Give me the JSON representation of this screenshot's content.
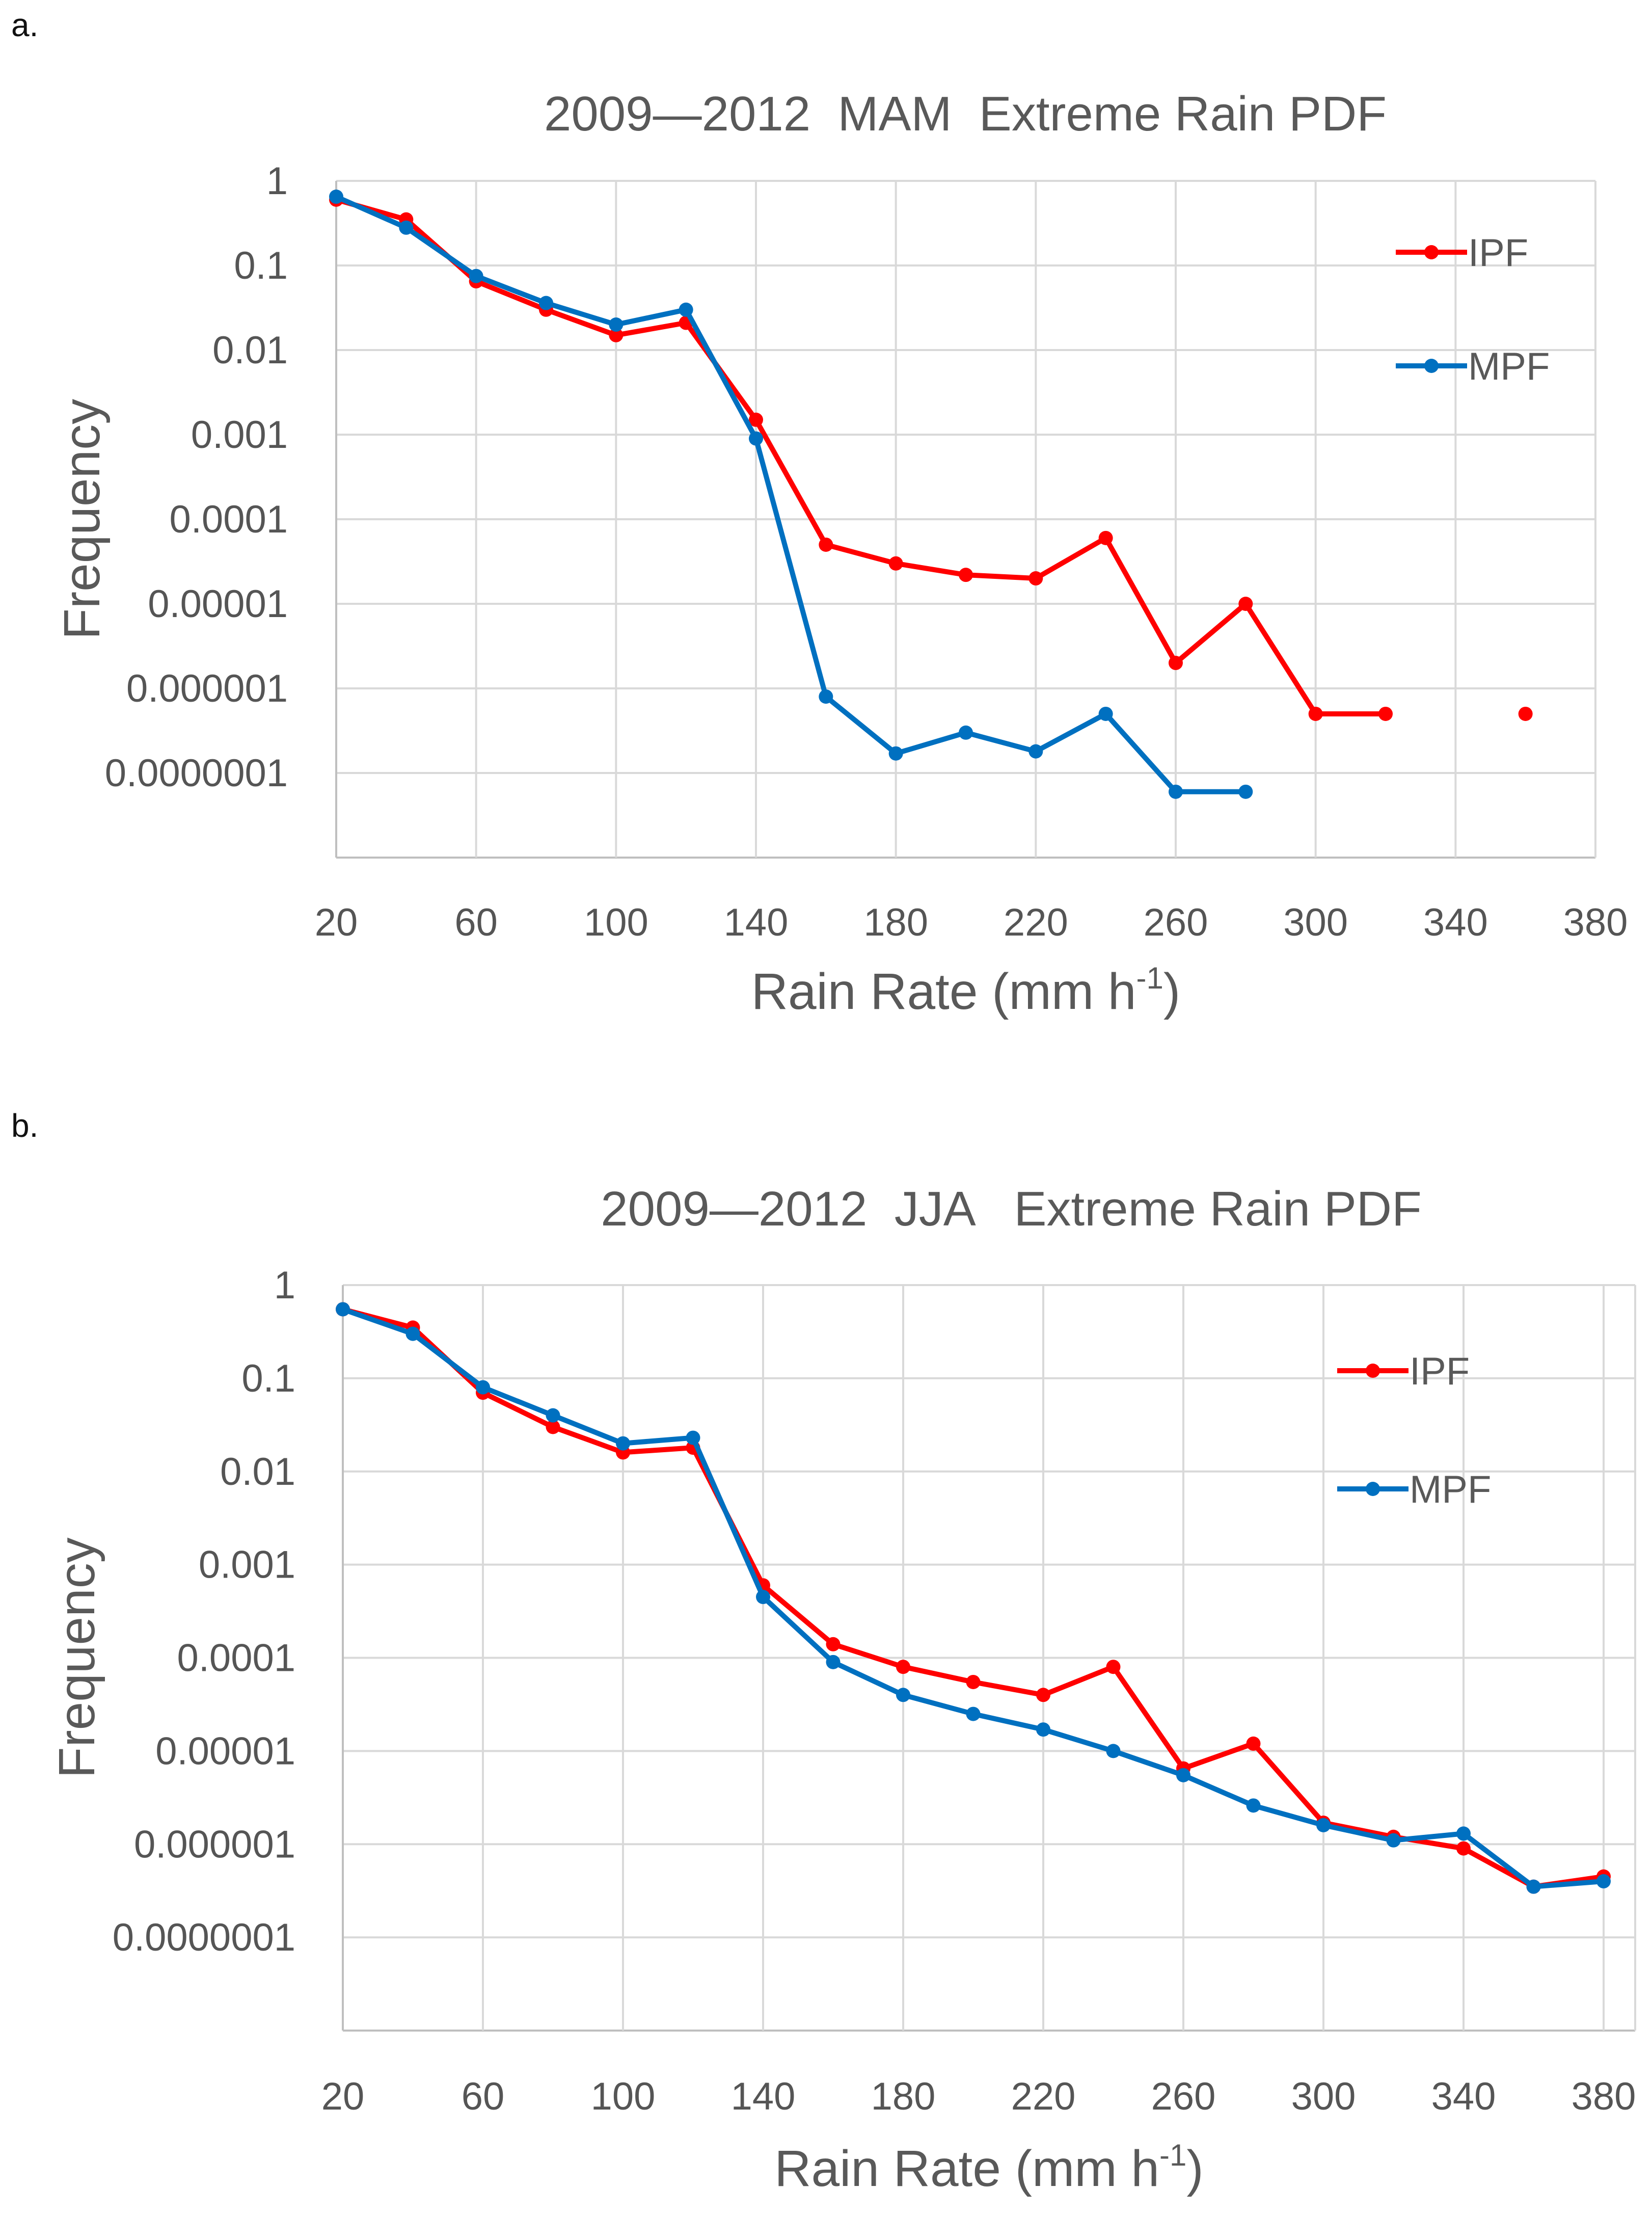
{
  "chart_data": [
    {
      "panel_label": "a.",
      "type": "line",
      "title": "2009—2012  MAM  Extreme Rain PDF",
      "xlabel": "Rain Rate (mm h",
      "xlabel_sup": "-1",
      "xlabel_close": ")",
      "ylabel": "Frequency",
      "xlim": [
        20,
        380
      ],
      "x_ticks": [
        "20",
        "60",
        "100",
        "140",
        "180",
        "220",
        "260",
        "300",
        "340",
        "380"
      ],
      "y_ticks": [
        "1",
        "0.1",
        "0.01",
        "0.001",
        "0.0001",
        "0.00001",
        "0.000001",
        "0.0000001"
      ],
      "ylim_log": [
        -8,
        0
      ],
      "legend_position": "top-right",
      "series": [
        {
          "name": "IPF",
          "color": "#ff0000",
          "x": [
            20,
            40,
            60,
            80,
            100,
            120,
            140,
            160,
            180,
            200,
            220,
            240,
            260,
            280,
            300,
            320,
            360
          ],
          "values": [
            0.6,
            0.35,
            0.065,
            0.03,
            0.015,
            0.021,
            0.0015,
            5e-05,
            3e-05,
            2.2e-05,
            2e-05,
            6e-05,
            2e-06,
            1e-05,
            5e-07,
            5e-07,
            5e-07
          ],
          "break_after_index": 15
        },
        {
          "name": "MPF",
          "color": "#0070c0",
          "x": [
            20,
            40,
            60,
            80,
            100,
            120,
            140,
            160,
            180,
            200,
            220,
            240,
            260,
            280
          ],
          "values": [
            0.65,
            0.28,
            0.075,
            0.036,
            0.02,
            0.03,
            0.0009,
            8e-07,
            1.7e-07,
            3e-07,
            1.8e-07,
            5e-07,
            6e-08,
            6e-08
          ]
        }
      ]
    },
    {
      "panel_label": "b.",
      "type": "line",
      "title": "2009—2012  JJA   Extreme Rain PDF",
      "xlabel": "Rain Rate (mm h",
      "xlabel_sup": "-1",
      "xlabel_close": ")",
      "ylabel": "Frequency",
      "xlim": [
        20,
        380
      ],
      "x_ticks": [
        "20",
        "60",
        "100",
        "140",
        "180",
        "220",
        "260",
        "300",
        "340",
        "380"
      ],
      "y_ticks": [
        "1",
        "0.1",
        "0.01",
        "0.001",
        "0.0001",
        "0.00001",
        "0.000001",
        "0.0000001"
      ],
      "ylim_log": [
        -8,
        0
      ],
      "legend_position": "top-right",
      "series": [
        {
          "name": "IPF",
          "color": "#ff0000",
          "x": [
            20,
            40,
            60,
            80,
            100,
            120,
            140,
            160,
            180,
            200,
            220,
            240,
            260,
            280,
            300,
            320,
            340,
            360,
            380
          ],
          "values": [
            0.55,
            0.35,
            0.07,
            0.03,
            0.016,
            0.018,
            0.0006,
            0.00014,
            8e-05,
            5.5e-05,
            4e-05,
            8e-05,
            6.5e-06,
            1.2e-05,
            1.7e-06,
            1.2e-06,
            9e-07,
            3.5e-07,
            4.5e-07
          ]
        },
        {
          "name": "MPF",
          "color": "#0070c0",
          "x": [
            20,
            40,
            60,
            80,
            100,
            120,
            140,
            160,
            180,
            200,
            220,
            240,
            260,
            280,
            300,
            320,
            340,
            360,
            380
          ],
          "values": [
            0.55,
            0.3,
            0.08,
            0.04,
            0.02,
            0.023,
            0.00045,
            9e-05,
            4e-05,
            2.5e-05,
            1.7e-05,
            1e-05,
            5.5e-06,
            2.6e-06,
            1.6e-06,
            1.1e-06,
            1.3e-06,
            3.5e-07,
            4e-07
          ]
        }
      ]
    }
  ]
}
